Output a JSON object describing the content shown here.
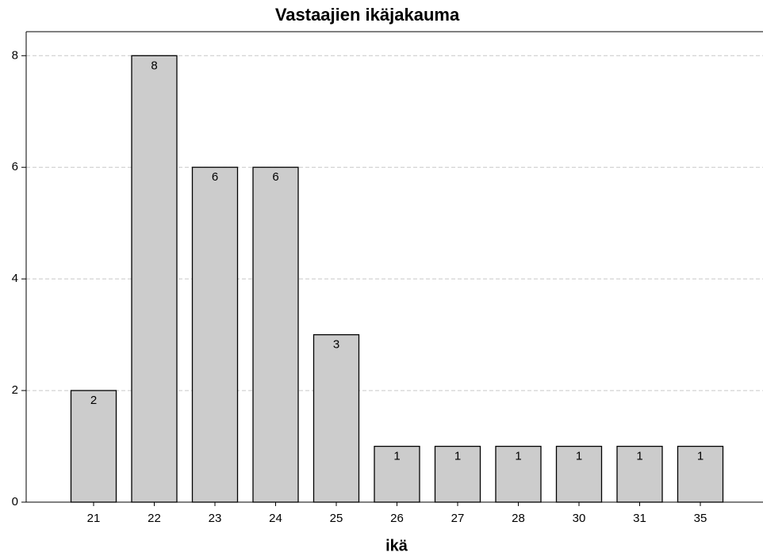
{
  "chart_data": {
    "type": "bar",
    "title": "Vastaajien ikäjakauma",
    "x_label": "ikä",
    "categories": [
      "21",
      "22",
      "23",
      "24",
      "25",
      "26",
      "27",
      "28",
      "30",
      "31",
      "35"
    ],
    "values": [
      2,
      8,
      6,
      6,
      3,
      1,
      1,
      1,
      1,
      1,
      1
    ],
    "color": "#cccccc",
    "ylim": [
      0,
      8.43
    ],
    "yticks": [
      0,
      2,
      4,
      6,
      8
    ],
    "grid": true,
    "data_labels": true
  }
}
